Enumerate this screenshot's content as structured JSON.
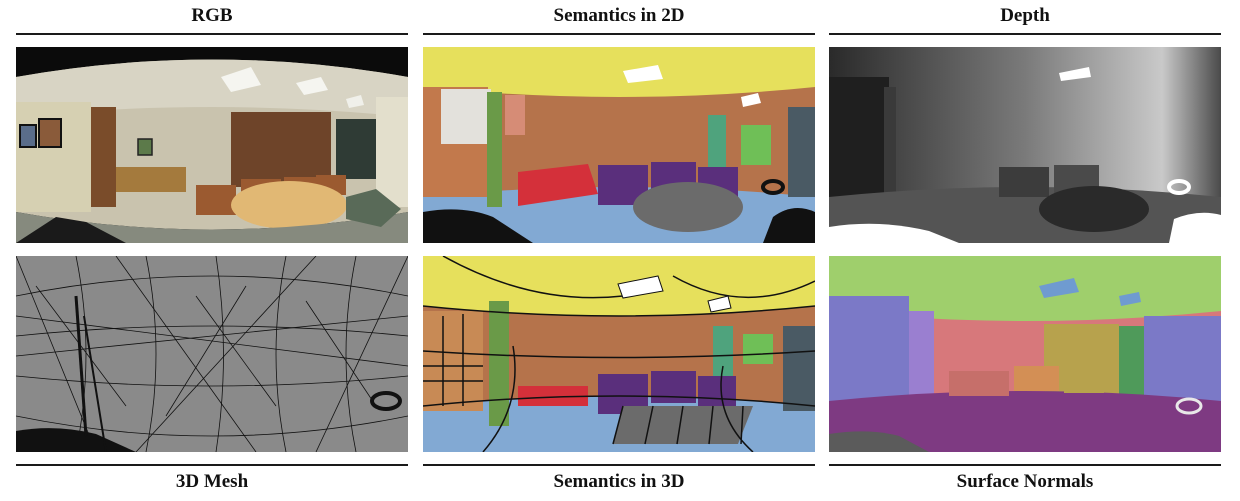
{
  "columns": [
    {
      "top_label": "RGB",
      "bottom_label": "3D Mesh"
    },
    {
      "top_label": "Semantics in 2D",
      "bottom_label": "Semantics in 3D"
    },
    {
      "top_label": "Depth",
      "bottom_label": "Surface Normals"
    }
  ],
  "colors": {
    "semantic_ceiling": "#e6e05c",
    "semantic_wall": "#b5734b",
    "semantic_floor": "#82a9d3",
    "semantic_chair": "#5a2f7c",
    "semantic_sofa": "#d4303a",
    "semantic_door": "#6a9a48",
    "semantic_table": "#6b6b6b",
    "normals_floor": "#7e3a82",
    "normals_ceiling": "#9fcf6c",
    "normals_wall_left": "#7b79c7",
    "normals_wall_front": "#d7787b"
  }
}
